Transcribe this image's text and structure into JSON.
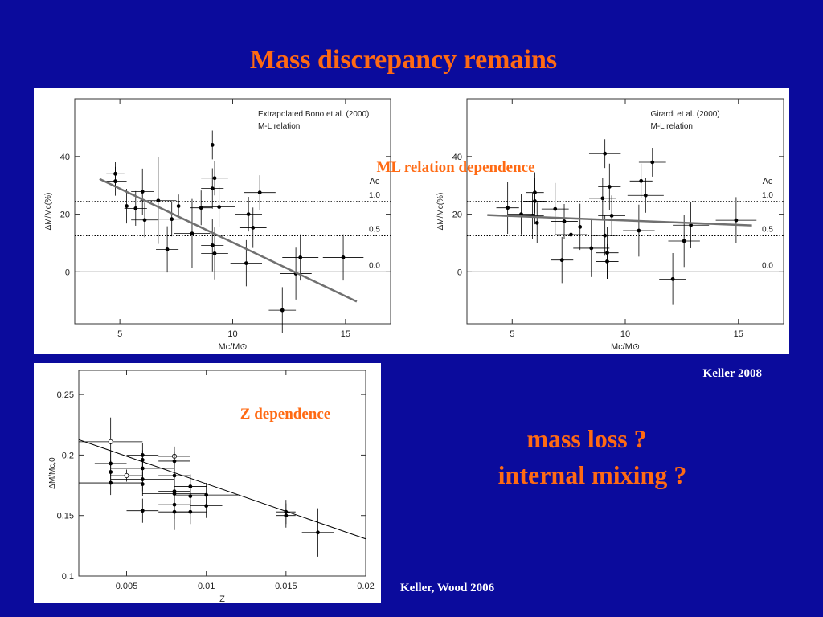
{
  "slide": {
    "title": "Mass discrepancy remains",
    "label_ml": "ML relation dependence",
    "label_z": "Z dependence",
    "question_1": "mass loss ?",
    "question_2": "internal mixing ?",
    "credit_top": "Keller 2008",
    "credit_bottom": "Keller, Wood 2006"
  },
  "chart_data": [
    {
      "type": "scatter",
      "annotations": [
        "Extrapolated Bono et al. (2000)",
        "M-L relation"
      ],
      "x_label": "Mc/M⊙",
      "y_label": "ΔM/Mc(%)",
      "xlim": [
        3,
        17
      ],
      "ylim": [
        -18,
        60
      ],
      "xticks": [
        5,
        10,
        15
      ],
      "yticks": [
        0,
        20,
        40
      ],
      "ref_title": "Λc",
      "ref_lines": [
        {
          "value": 24.4,
          "label": "1.0"
        },
        {
          "value": 12.5,
          "label": "0.5"
        },
        {
          "value": 0,
          "label": "0.0"
        }
      ],
      "series": [
        {
          "color": "#000000",
          "x": [
            4.8,
            4.8,
            5.3,
            5.7,
            6.0,
            6.1,
            6.7,
            7.1,
            7.3,
            7.6,
            8.2,
            8.6,
            9.1,
            9.2,
            9.1,
            9.1,
            9.2,
            9.4,
            10.7,
            11.2,
            10.9,
            10.6,
            12.2,
            13.0,
            12.8,
            14.9
          ],
          "values": [
            31.4,
            34,
            22.8,
            22,
            27.8,
            18,
            24.7,
            7.8,
            18.3,
            22.8,
            13.3,
            22.2,
            44,
            32.5,
            28.9,
            9.2,
            6.4,
            22.5,
            20,
            27.5,
            15.3,
            3,
            -13.3,
            5,
            -0.6,
            5
          ],
          "xerr": [
            0.5,
            0.4,
            0.6,
            0.5,
            0.5,
            0.6,
            0.8,
            0.5,
            0.6,
            0.7,
            0.8,
            0.5,
            0.6,
            0.6,
            0.5,
            0.5,
            0.6,
            0.7,
            0.6,
            0.7,
            0.6,
            0.7,
            0.6,
            0.8,
            0.7,
            0.9
          ],
          "yerr": [
            5,
            4,
            6,
            6,
            8,
            6,
            15,
            8,
            6,
            4,
            12,
            6,
            5,
            6,
            7,
            9,
            9,
            7,
            6,
            6,
            7,
            8,
            8,
            8,
            9,
            8
          ]
        }
      ],
      "fit": {
        "color": "#707070",
        "x": [
          4.1,
          15.5
        ],
        "values": [
          32.2,
          -10.3
        ]
      }
    },
    {
      "type": "scatter",
      "annotations": [
        "Girardi et al. (2000)",
        "M-L relation"
      ],
      "x_label": "Mc/M⊙",
      "y_label": "ΔM/Mc(%)",
      "xlim": [
        3,
        17
      ],
      "ylim": [
        -18,
        60
      ],
      "xticks": [
        5,
        10,
        15
      ],
      "yticks": [
        0,
        20,
        40
      ],
      "ref_title": "Λc",
      "ref_lines": [
        {
          "value": 24.4,
          "label": "1.0"
        },
        {
          "value": 12.5,
          "label": "0.5"
        },
        {
          "value": 0,
          "label": "0.0"
        }
      ],
      "series": [
        {
          "color": "#000000",
          "x": [
            9.1,
            11.2,
            10.7,
            9.3,
            10.9,
            6.0,
            6.0,
            4.8,
            5.4,
            5.9,
            6.1,
            6.9,
            7.3,
            8.0,
            7.6,
            7.2,
            8.5,
            9.1,
            9.2,
            9.2,
            9.4,
            10.6,
            12.6,
            12.1,
            12.9,
            14.9,
            9.0
          ],
          "values": [
            41,
            38,
            31.5,
            29.5,
            26.5,
            27.5,
            24.5,
            22.2,
            20,
            19.5,
            17,
            21.8,
            17.5,
            15.6,
            12.9,
            4.1,
            8.2,
            12.6,
            6.6,
            3.6,
            19.5,
            14.3,
            10.7,
            -2.5,
            16.2,
            17.9,
            25.5
          ],
          "xerr": [
            0.7,
            0.6,
            0.5,
            0.5,
            0.8,
            0.4,
            0.5,
            0.5,
            0.6,
            0.5,
            0.5,
            0.6,
            0.6,
            0.7,
            0.7,
            0.5,
            0.8,
            0.6,
            0.5,
            0.5,
            0.6,
            0.7,
            0.7,
            0.6,
            0.8,
            0.9,
            0.6
          ],
          "yerr": [
            5,
            5,
            6,
            8,
            6,
            7,
            8,
            9,
            7,
            8,
            7,
            9,
            6,
            8,
            6,
            8,
            10,
            7,
            9,
            6,
            7,
            9,
            9,
            9,
            8,
            8,
            7
          ]
        }
      ],
      "fit": {
        "color": "#707070",
        "x": [
          3.9,
          15.6
        ],
        "values": [
          19.7,
          16.1
        ]
      }
    },
    {
      "type": "scatter",
      "x_label": "Z",
      "y_label": "ΔM/Mc,0",
      "xlim": [
        0.002,
        0.02
      ],
      "ylim": [
        0.1,
        0.27
      ],
      "xticks": [
        0.005,
        0.01,
        0.015,
        0.02
      ],
      "yticks": [
        0.1,
        0.15,
        0.2,
        0.25
      ],
      "series": [
        {
          "color": "#000000",
          "x": [
            0.004,
            0.004,
            0.004,
            0.004,
            0.005,
            0.006,
            0.006,
            0.006,
            0.006,
            0.006,
            0.006,
            0.008,
            0.008,
            0.008,
            0.008,
            0.008,
            0.008,
            0.008,
            0.009,
            0.009,
            0.009,
            0.01,
            0.01,
            0.015,
            0.015,
            0.017
          ],
          "values": [
            0.211,
            0.193,
            0.186,
            0.177,
            0.183,
            0.2,
            0.196,
            0.189,
            0.18,
            0.176,
            0.154,
            0.199,
            0.195,
            0.183,
            0.17,
            0.168,
            0.159,
            0.153,
            0.174,
            0.166,
            0.153,
            0.167,
            0.158,
            0.153,
            0.15,
            0.136
          ],
          "xerr": [
            0.002,
            0.001,
            0.002,
            0.002,
            0.001,
            0.001,
            0.001,
            0.002,
            0.002,
            0.001,
            0.001,
            0.001,
            0.001,
            0.001,
            0.001,
            0.002,
            0.001,
            0.001,
            0.001,
            0.001,
            0.001,
            0.002,
            0.001,
            0.0006,
            0.0006,
            0.001
          ],
          "yerr": [
            0.02,
            0.01,
            0.01,
            0.01,
            0.005,
            0.01,
            0.008,
            0.008,
            0.01,
            0.01,
            0.01,
            0.008,
            0.008,
            0.01,
            0.01,
            0.01,
            0.012,
            0.015,
            0.01,
            0.01,
            0.01,
            0.01,
            0.01,
            0.01,
            0.01,
            0.02
          ],
          "hollow": [
            true,
            false,
            false,
            false,
            true,
            false,
            false,
            false,
            false,
            false,
            false,
            true,
            false,
            false,
            false,
            false,
            false,
            false,
            false,
            false,
            false,
            false,
            false,
            false,
            false,
            false
          ]
        }
      ],
      "fit": {
        "color": "#000000",
        "x": [
          0.002,
          0.02
        ],
        "values": [
          0.2127,
          0.1307
        ]
      }
    }
  ]
}
